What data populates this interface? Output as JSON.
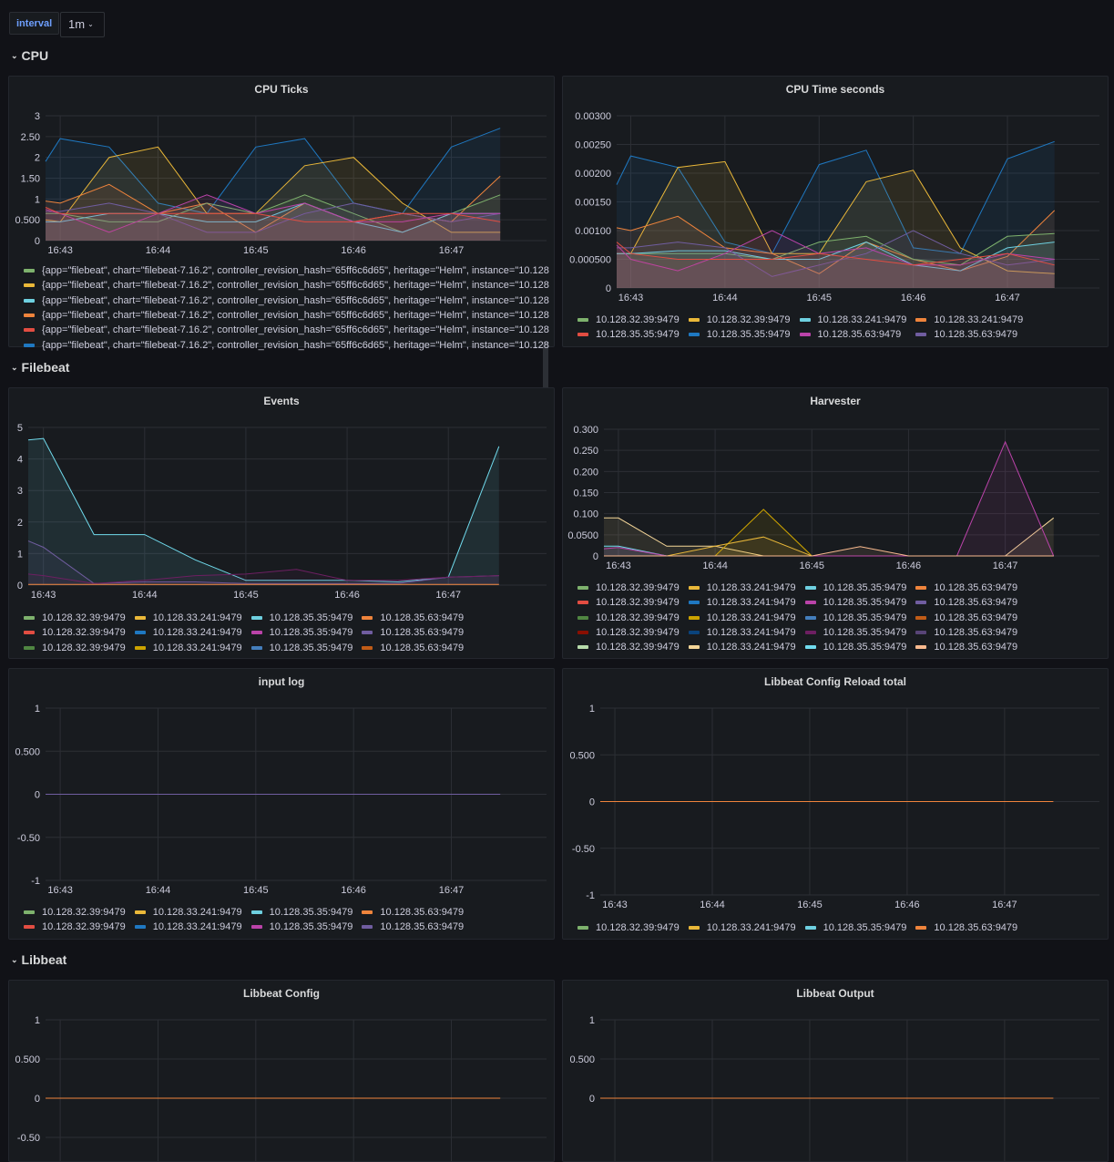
{
  "toolbar": {
    "variable_label": "interval",
    "variable_value": "1m"
  },
  "palette": [
    "#7EB26D",
    "#EAB839",
    "#6ED0E0",
    "#EF843C",
    "#E24D42",
    "#1F78C1",
    "#BA43A9",
    "#705DA0",
    "#508642",
    "#CCA300",
    "#447EBC",
    "#C15C17",
    "#890F02",
    "#0A437C",
    "#6D1F62",
    "#584477",
    "#B7DBAB",
    "#F4D598",
    "#70DBED",
    "#F9BA8F"
  ],
  "rows": [
    {
      "title": "CPU"
    },
    {
      "title": "Filebeat"
    },
    {
      "title": "Libbeat"
    }
  ],
  "x_ticks": [
    "16:43",
    "16:44",
    "16:45",
    "16:46",
    "16:47"
  ],
  "x_tick_values": [
    1,
    2,
    3,
    4,
    5
  ],
  "x_points": [
    0.85,
    1,
    1.5,
    2,
    2.5,
    3,
    3.5,
    4,
    4.5,
    5,
    5.5
  ],
  "xlim": [
    0.85,
    5.88
  ],
  "instances": [
    "10.128.32.39:9479",
    "10.128.33.241:9479",
    "10.128.35.35:9479",
    "10.128.35.63:9479"
  ],
  "panels": [
    {
      "id": "cpu-ticks",
      "title": "CPU Ticks",
      "ylim": [
        0,
        3
      ],
      "y_ticks": [
        0,
        0.5,
        1,
        1.5,
        2,
        2.5,
        3
      ],
      "y_tick_labels": [
        "0",
        "0.500",
        "1",
        "1.50",
        "2",
        "2.50",
        "3"
      ],
      "series": [
        {
          "color": 5,
          "values": [
            1.9,
            2.45,
            2.25,
            0.9,
            0.65,
            2.25,
            2.45,
            0.9,
            0.65,
            2.25,
            2.7
          ]
        },
        {
          "color": 1,
          "values": [
            0.5,
            0.45,
            2.0,
            2.25,
            0.65,
            0.65,
            1.8,
            2.0,
            0.9,
            0.2,
            0.2
          ]
        },
        {
          "color": 3,
          "values": [
            0.95,
            0.9,
            1.35,
            0.65,
            0.9,
            0.2,
            0.9,
            0.45,
            0.65,
            0.45,
            1.55
          ]
        },
        {
          "color": 0,
          "values": [
            0.65,
            0.65,
            0.45,
            0.45,
            0.9,
            0.65,
            1.1,
            0.65,
            0.2,
            0.65,
            1.1
          ]
        },
        {
          "color": 2,
          "values": [
            0.45,
            0.45,
            0.65,
            0.65,
            0.45,
            0.45,
            0.9,
            0.45,
            0.2,
            0.65,
            0.65
          ]
        },
        {
          "color": 7,
          "values": [
            0.7,
            0.7,
            0.9,
            0.65,
            0.2,
            0.2,
            0.65,
            0.9,
            0.65,
            0.45,
            0.65
          ]
        },
        {
          "color": 6,
          "values": [
            0.75,
            0.65,
            0.2,
            0.65,
            1.1,
            0.65,
            0.9,
            0.45,
            0.45,
            0.65,
            0.65
          ]
        },
        {
          "color": 4,
          "values": [
            0.8,
            0.65,
            0.65,
            0.65,
            0.65,
            0.65,
            0.45,
            0.45,
            0.65,
            0.65,
            0.45
          ]
        }
      ],
      "legend": [
        {
          "color": 0,
          "label": "{app=\"filebeat\", chart=\"filebeat-7.16.2\", controller_revision_hash=\"65ff6c6d65\", heritage=\"Helm\", instance=\"10.128"
        },
        {
          "color": 1,
          "label": "{app=\"filebeat\", chart=\"filebeat-7.16.2\", controller_revision_hash=\"65ff6c6d65\", heritage=\"Helm\", instance=\"10.128"
        },
        {
          "color": 2,
          "label": "{app=\"filebeat\", chart=\"filebeat-7.16.2\", controller_revision_hash=\"65ff6c6d65\", heritage=\"Helm\", instance=\"10.128"
        },
        {
          "color": 3,
          "label": "{app=\"filebeat\", chart=\"filebeat-7.16.2\", controller_revision_hash=\"65ff6c6d65\", heritage=\"Helm\", instance=\"10.128"
        },
        {
          "color": 4,
          "label": "{app=\"filebeat\", chart=\"filebeat-7.16.2\", controller_revision_hash=\"65ff6c6d65\", heritage=\"Helm\", instance=\"10.128"
        },
        {
          "color": 5,
          "label": "{app=\"filebeat\", chart=\"filebeat-7.16.2\", controller_revision_hash=\"65ff6c6d65\", heritage=\"Helm\", instance=\"10.128"
        }
      ]
    },
    {
      "id": "cpu-time",
      "title": "CPU Time seconds",
      "ylim": [
        0,
        0.003
      ],
      "y_ticks": [
        0,
        0.0005,
        0.001,
        0.0015,
        0.002,
        0.0025,
        0.003
      ],
      "y_tick_labels": [
        "0",
        "0.000500",
        "0.00100",
        "0.00150",
        "0.00200",
        "0.00250",
        "0.00300"
      ],
      "series": [
        {
          "color": 5,
          "values": [
            0.0018,
            0.0023,
            0.0021,
            0.0008,
            0.0006,
            0.00215,
            0.0024,
            0.0007,
            0.0006,
            0.00225,
            0.00255
          ]
        },
        {
          "color": 1,
          "values": [
            0.0006,
            0.0006,
            0.0021,
            0.0022,
            0.0006,
            0.0006,
            0.00185,
            0.00205,
            0.0007,
            0.0003,
            0.00025
          ]
        },
        {
          "color": 3,
          "values": [
            0.00105,
            0.001,
            0.00125,
            0.0007,
            0.0006,
            0.00025,
            0.0008,
            0.0005,
            0.0003,
            0.00055,
            0.00135
          ]
        },
        {
          "color": 0,
          "values": [
            0.0006,
            0.0006,
            0.0006,
            0.0006,
            0.0005,
            0.0008,
            0.0009,
            0.0005,
            0.0004,
            0.0009,
            0.00095
          ]
        },
        {
          "color": 2,
          "values": [
            0.0006,
            0.0006,
            0.00065,
            0.00065,
            0.0005,
            0.0005,
            0.0008,
            0.0004,
            0.0003,
            0.0007,
            0.0008
          ]
        },
        {
          "color": 7,
          "values": [
            0.0007,
            0.0007,
            0.0008,
            0.0007,
            0.0002,
            0.0004,
            0.0006,
            0.001,
            0.0006,
            0.0004,
            0.0005
          ]
        },
        {
          "color": 6,
          "values": [
            0.00075,
            0.0005,
            0.0003,
            0.0006,
            0.001,
            0.0006,
            0.0007,
            0.0004,
            0.0004,
            0.0006,
            0.0005
          ]
        },
        {
          "color": 4,
          "values": [
            0.0008,
            0.0006,
            0.0005,
            0.0005,
            0.0005,
            0.0006,
            0.0005,
            0.0004,
            0.0005,
            0.0006,
            0.0004
          ]
        }
      ],
      "legend": [
        {
          "color": 0,
          "label": "10.128.32.39:9479"
        },
        {
          "color": 1,
          "label": "10.128.32.39:9479"
        },
        {
          "color": 2,
          "label": "10.128.33.241:9479"
        },
        {
          "color": 3,
          "label": "10.128.33.241:9479"
        },
        {
          "color": 4,
          "label": "10.128.35.35:9479"
        },
        {
          "color": 5,
          "label": "10.128.35.35:9479"
        },
        {
          "color": 6,
          "label": "10.128.35.63:9479"
        },
        {
          "color": 7,
          "label": "10.128.35.63:9479"
        }
      ]
    },
    {
      "id": "events",
      "title": "Events",
      "ylim": [
        0,
        5
      ],
      "y_ticks": [
        0,
        1,
        2,
        3,
        4,
        5
      ],
      "y_tick_labels": [
        "0",
        "1",
        "2",
        "3",
        "4",
        "5"
      ],
      "series": [
        {
          "color": 18,
          "values": [
            4.6,
            4.65,
            1.6,
            1.6,
            0.8,
            0.15,
            0.15,
            0.15,
            0.1,
            0.25,
            4.4
          ]
        },
        {
          "color": 7,
          "values": [
            1.4,
            1.2,
            0.05,
            0.1,
            0.1,
            0.05,
            0.05,
            0.05,
            0.05,
            0.25,
            0.3
          ]
        },
        {
          "color": 14,
          "values": [
            0.35,
            0.3,
            0.05,
            0.15,
            0.3,
            0.35,
            0.5,
            0.15,
            0.15,
            0.25,
            0.3
          ]
        },
        {
          "color": 3,
          "values": [
            0.02,
            0.02,
            0.02,
            0.02,
            0.02,
            0.02,
            0.02,
            0.02,
            0.02,
            0.02,
            0.02
          ]
        }
      ],
      "legend": [
        {
          "color": 0,
          "label": "10.128.32.39:9479"
        },
        {
          "color": 1,
          "label": "10.128.33.241:9479"
        },
        {
          "color": 2,
          "label": "10.128.35.35:9479"
        },
        {
          "color": 3,
          "label": "10.128.35.63:9479"
        },
        {
          "color": 4,
          "label": "10.128.32.39:9479"
        },
        {
          "color": 5,
          "label": "10.128.33.241:9479"
        },
        {
          "color": 6,
          "label": "10.128.35.35:9479"
        },
        {
          "color": 7,
          "label": "10.128.35.63:9479"
        },
        {
          "color": 8,
          "label": "10.128.32.39:9479"
        },
        {
          "color": 9,
          "label": "10.128.33.241:9479"
        },
        {
          "color": 10,
          "label": "10.128.35.35:9479"
        },
        {
          "color": 11,
          "label": "10.128.35.63:9479"
        }
      ]
    },
    {
      "id": "harvester",
      "title": "Harvester",
      "ylim": [
        0,
        0.3
      ],
      "y_ticks": [
        0,
        0.05,
        0.1,
        0.15,
        0.2,
        0.25,
        0.3
      ],
      "y_tick_labels": [
        "0",
        "0.0500",
        "0.100",
        "0.150",
        "0.200",
        "0.250",
        "0.300"
      ],
      "series": [
        {
          "color": 17,
          "values": [
            0.09,
            0.09,
            0.023,
            0.023,
            0,
            0,
            0,
            0,
            0,
            0,
            0.09
          ]
        },
        {
          "color": 9,
          "values": [
            0,
            0,
            0,
            0,
            0.11,
            0,
            0,
            0,
            0,
            0,
            0
          ]
        },
        {
          "color": 1,
          "values": [
            0,
            0,
            0,
            0.023,
            0.045,
            0,
            0,
            0,
            0,
            0,
            0
          ]
        },
        {
          "color": 18,
          "values": [
            0.023,
            0.023,
            0,
            0,
            0,
            0,
            0,
            0,
            0,
            0,
            0
          ]
        },
        {
          "color": 6,
          "values": [
            0.017,
            0.02,
            0,
            0,
            0,
            0,
            0,
            0,
            0,
            0.27,
            0
          ]
        },
        {
          "color": 19,
          "values": [
            0,
            0,
            0,
            0,
            0,
            0,
            0.022,
            0,
            0,
            0,
            0
          ]
        }
      ],
      "legend": [
        {
          "color": 0,
          "label": "10.128.32.39:9479"
        },
        {
          "color": 1,
          "label": "10.128.33.241:9479"
        },
        {
          "color": 2,
          "label": "10.128.35.35:9479"
        },
        {
          "color": 3,
          "label": "10.128.35.63:9479"
        },
        {
          "color": 4,
          "label": "10.128.32.39:9479"
        },
        {
          "color": 5,
          "label": "10.128.33.241:9479"
        },
        {
          "color": 6,
          "label": "10.128.35.35:9479"
        },
        {
          "color": 7,
          "label": "10.128.35.63:9479"
        },
        {
          "color": 8,
          "label": "10.128.32.39:9479"
        },
        {
          "color": 9,
          "label": "10.128.33.241:9479"
        },
        {
          "color": 10,
          "label": "10.128.35.35:9479"
        },
        {
          "color": 11,
          "label": "10.128.35.63:9479"
        },
        {
          "color": 12,
          "label": "10.128.32.39:9479"
        },
        {
          "color": 13,
          "label": "10.128.33.241:9479"
        },
        {
          "color": 14,
          "label": "10.128.35.35:9479"
        },
        {
          "color": 15,
          "label": "10.128.35.63:9479"
        },
        {
          "color": 16,
          "label": "10.128.32.39:9479"
        },
        {
          "color": 17,
          "label": "10.128.33.241:9479"
        },
        {
          "color": 18,
          "label": "10.128.35.35:9479"
        },
        {
          "color": 19,
          "label": "10.128.35.63:9479"
        }
      ]
    },
    {
      "id": "input-log",
      "title": "input log",
      "ylim": [
        -1,
        1
      ],
      "y_ticks": [
        -1,
        -0.5,
        0,
        0.5,
        1
      ],
      "y_tick_labels": [
        "-1",
        "-0.50",
        "0",
        "0.500",
        "1"
      ],
      "series": [
        {
          "color": 7,
          "values": [
            0,
            0,
            0,
            0,
            0,
            0,
            0,
            0,
            0,
            0,
            0
          ]
        }
      ],
      "legend": [
        {
          "color": 0,
          "label": "10.128.32.39:9479"
        },
        {
          "color": 1,
          "label": "10.128.33.241:9479"
        },
        {
          "color": 2,
          "label": "10.128.35.35:9479"
        },
        {
          "color": 3,
          "label": "10.128.35.63:9479"
        },
        {
          "color": 4,
          "label": "10.128.32.39:9479"
        },
        {
          "color": 5,
          "label": "10.128.33.241:9479"
        },
        {
          "color": 6,
          "label": "10.128.35.35:9479"
        },
        {
          "color": 7,
          "label": "10.128.35.63:9479"
        }
      ]
    },
    {
      "id": "config-reload",
      "title": "Libbeat Config Reload total",
      "ylim": [
        -1,
        1
      ],
      "y_ticks": [
        -1,
        -0.5,
        0,
        0.5,
        1
      ],
      "y_tick_labels": [
        "-1",
        "-0.50",
        "0",
        "0.500",
        "1"
      ],
      "series": [
        {
          "color": 3,
          "values": [
            0,
            0,
            0,
            0,
            0,
            0,
            0,
            0,
            0,
            0,
            0
          ]
        }
      ],
      "legend": [
        {
          "color": 0,
          "label": "10.128.32.39:9479"
        },
        {
          "color": 1,
          "label": "10.128.33.241:9479"
        },
        {
          "color": 2,
          "label": "10.128.35.35:9479"
        },
        {
          "color": 3,
          "label": "10.128.35.63:9479"
        }
      ]
    },
    {
      "id": "libbeat-config",
      "title": "Libbeat Config",
      "ylim": [
        -1,
        1
      ],
      "y_ticks": [
        -0.5,
        0,
        0.5,
        1
      ],
      "y_tick_labels": [
        "-0.50",
        "0",
        "0.500",
        "1"
      ],
      "series": [
        {
          "color": 3,
          "values": [
            0,
            0,
            0,
            0,
            0,
            0,
            0,
            0,
            0,
            0,
            0
          ]
        }
      ],
      "legend": []
    },
    {
      "id": "libbeat-output",
      "title": "Libbeat Output",
      "ylim": [
        -1,
        1
      ],
      "y_ticks": [
        0,
        0.5,
        1
      ],
      "y_tick_labels": [
        "0",
        "0.500",
        "1"
      ],
      "series": [
        {
          "color": 3,
          "values": [
            0,
            0,
            0,
            0,
            0,
            0,
            0,
            0,
            0,
            0,
            0
          ]
        }
      ],
      "legend": []
    }
  ]
}
